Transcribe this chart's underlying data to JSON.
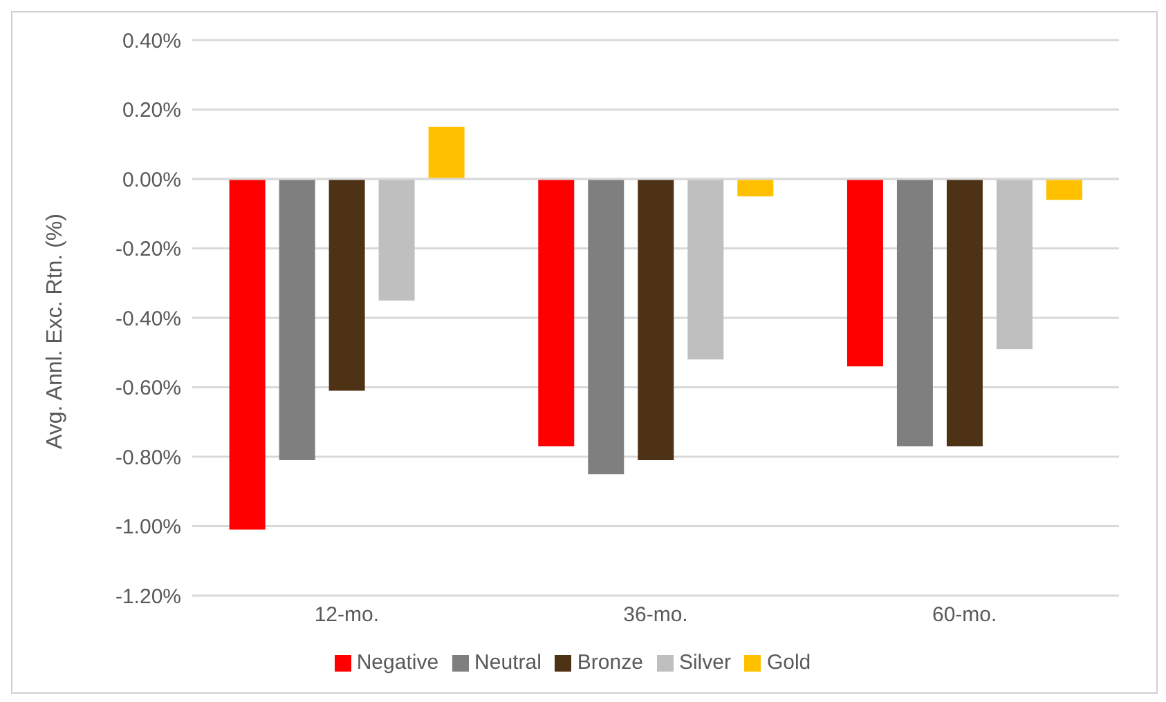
{
  "chart_data": {
    "type": "bar",
    "ylabel": "Avg. Annl. Exc. Rtn. (%)",
    "categories": [
      "12-mo.",
      "36-mo.",
      "60-mo."
    ],
    "series": [
      {
        "name": "Negative",
        "color": "#ff0000",
        "values": [
          -1.01,
          -0.77,
          -0.54
        ]
      },
      {
        "name": "Neutral",
        "color": "#7f7f7f",
        "values": [
          -0.81,
          -0.85,
          -0.77
        ]
      },
      {
        "name": "Bronze",
        "color": "#4e3216",
        "values": [
          -0.61,
          -0.81,
          -0.77
        ]
      },
      {
        "name": "Silver",
        "color": "#bfbfbf",
        "values": [
          -0.35,
          -0.52,
          -0.49
        ]
      },
      {
        "name": "Gold",
        "color": "#ffc000",
        "values": [
          0.15,
          -0.05,
          -0.06
        ]
      }
    ],
    "ylim": [
      -1.2,
      0.4
    ],
    "yticks": [
      {
        "value": 0.4,
        "label": "0.40%"
      },
      {
        "value": 0.2,
        "label": "0.20%"
      },
      {
        "value": 0,
        "label": "0.00%"
      },
      {
        "value": -0.2,
        "label": "-0.20%"
      },
      {
        "value": -0.4,
        "label": "-0.40%"
      },
      {
        "value": -0.6,
        "label": "-0.60%"
      },
      {
        "value": -0.8,
        "label": "-0.80%"
      },
      {
        "value": -1,
        "label": "-1.00%"
      },
      {
        "value": -1.2,
        "label": "-1.20%"
      }
    ],
    "grid": "y",
    "legend": "bottom"
  }
}
